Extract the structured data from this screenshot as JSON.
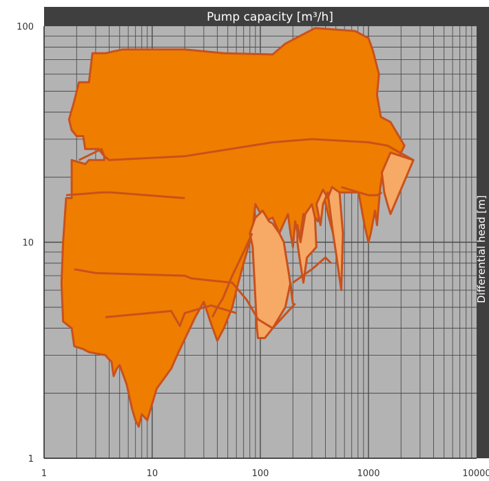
{
  "chart_data": {
    "type": "area",
    "title": "Pump capacity  [m³/h]",
    "ylabel": "Differential head  [m]",
    "x_scale": "log",
    "y_scale": "log",
    "xlim": [
      1,
      10000
    ],
    "ylim": [
      1,
      100
    ],
    "x_ticks": [
      {
        "value": 1,
        "label": "1"
      },
      {
        "value": 10,
        "label": "10"
      },
      {
        "value": 100,
        "label": "100"
      },
      {
        "value": 1000,
        "label": "1000"
      },
      {
        "value": 10000,
        "label": "10000"
      }
    ],
    "y_ticks": [
      {
        "value": 1,
        "label": "1"
      },
      {
        "value": 10,
        "label": "10"
      },
      {
        "value": 100,
        "label": "100"
      }
    ],
    "grid": true,
    "colors": {
      "plot_background": "#b3b3b3",
      "grid": "#4a4a4a",
      "area_main": "#ef7d00",
      "area_light": "#f7a966",
      "outline": "#c8511c",
      "header_band": "#3f3f3f"
    },
    "regions": [
      {
        "shade": "main",
        "points": [
          [
            1.7,
            37
          ],
          [
            1.9,
            45
          ],
          [
            2.1,
            55
          ],
          [
            2.6,
            55
          ],
          [
            2.8,
            75
          ],
          [
            3.7,
            75
          ],
          [
            5.3,
            78
          ],
          [
            20,
            78
          ],
          [
            46,
            75
          ],
          [
            130,
            74
          ],
          [
            170,
            83
          ],
          [
            320,
            98
          ],
          [
            750,
            95
          ],
          [
            1000,
            88
          ],
          [
            1100,
            77
          ],
          [
            1250,
            60
          ],
          [
            1200,
            48
          ],
          [
            1300,
            38
          ],
          [
            1600,
            36
          ],
          [
            2150,
            28
          ],
          [
            1850,
            24
          ],
          [
            1650,
            20
          ],
          [
            1500,
            17
          ],
          [
            1400,
            20
          ],
          [
            1500,
            17
          ],
          [
            1330,
            20
          ],
          [
            1280,
            17.5
          ],
          [
            1200,
            12
          ],
          [
            1150,
            14
          ],
          [
            1050,
            11
          ],
          [
            1000,
            10
          ],
          [
            920,
            12
          ],
          [
            870,
            14
          ],
          [
            810,
            17
          ],
          [
            500,
            17
          ],
          [
            470,
            11
          ],
          [
            430,
            13
          ],
          [
            390,
            16
          ],
          [
            340,
            12.5
          ],
          [
            290,
            14
          ],
          [
            270,
            12
          ],
          [
            250,
            13.5
          ],
          [
            230,
            10
          ],
          [
            210,
            12.5
          ],
          [
            200,
            9.5
          ],
          [
            190,
            11
          ],
          [
            180,
            13.5
          ],
          [
            150,
            11
          ],
          [
            130,
            13
          ],
          [
            110,
            12.5
          ],
          [
            90,
            15
          ],
          [
            84,
            11
          ],
          [
            75,
            9
          ],
          [
            70,
            8
          ],
          [
            60,
            6
          ],
          [
            55,
            5
          ],
          [
            46,
            4
          ],
          [
            40,
            3.5
          ],
          [
            35,
            4.2
          ],
          [
            30,
            5.3
          ],
          [
            25,
            4.5
          ],
          [
            17,
            3
          ],
          [
            15,
            2.6
          ],
          [
            11,
            2.1
          ],
          [
            9,
            1.5
          ],
          [
            8,
            1.6
          ],
          [
            7.5,
            1.4
          ],
          [
            7,
            1.5
          ],
          [
            6.5,
            1.7
          ],
          [
            5.8,
            2.2
          ],
          [
            5,
            2.7
          ],
          [
            4.7,
            2.6
          ],
          [
            4.4,
            2.4
          ],
          [
            4.2,
            2.8
          ],
          [
            3.9,
            2.9
          ],
          [
            3.7,
            3
          ],
          [
            2.6,
            3.1
          ],
          [
            2.3,
            3.2
          ],
          [
            1.9,
            3.3
          ],
          [
            1.8,
            4
          ],
          [
            1.5,
            4.3
          ],
          [
            1.45,
            6.5
          ],
          [
            1.5,
            10
          ],
          [
            1.6,
            16
          ],
          [
            1.8,
            16
          ],
          [
            1.8,
            24
          ],
          [
            2.4,
            23
          ],
          [
            2.6,
            24
          ],
          [
            3.6,
            24
          ],
          [
            3.6,
            25
          ],
          [
            3.2,
            27
          ],
          [
            2.4,
            27
          ],
          [
            2.3,
            31
          ],
          [
            2,
            31
          ],
          [
            1.8,
            33
          ]
        ]
      },
      {
        "shade": "light",
        "points": [
          [
            1330,
            21
          ],
          [
            1400,
            17
          ],
          [
            1500,
            15
          ],
          [
            1600,
            13.5
          ],
          [
            2600,
            24
          ],
          [
            1600,
            26
          ]
        ]
      },
      {
        "shade": "light",
        "points": [
          [
            120,
            12.5
          ],
          [
            130,
            12.2
          ],
          [
            150,
            11
          ],
          [
            165,
            10
          ],
          [
            185,
            7
          ],
          [
            200,
            5.2
          ],
          [
            190,
            6.5
          ],
          [
            170,
            5
          ],
          [
            130,
            4
          ],
          [
            110,
            3.6
          ],
          [
            95,
            3.6
          ],
          [
            93,
            4
          ],
          [
            90,
            5.5
          ],
          [
            85,
            9.5
          ],
          [
            80,
            11
          ],
          [
            90,
            13
          ],
          [
            105,
            14
          ],
          [
            115,
            13
          ]
        ]
      },
      {
        "shade": "light",
        "points": [
          [
            330,
            15
          ],
          [
            360,
            12
          ],
          [
            380,
            15
          ],
          [
            420,
            17
          ],
          [
            470,
            11
          ],
          [
            500,
            9
          ],
          [
            560,
            6
          ],
          [
            580,
            11
          ],
          [
            540,
            17
          ],
          [
            460,
            18
          ],
          [
            420,
            16
          ],
          [
            380,
            17.5
          ],
          [
            350,
            16
          ]
        ]
      },
      {
        "shade": "light",
        "points": [
          [
            220,
            12
          ],
          [
            235,
            10
          ],
          [
            260,
            13.5
          ],
          [
            300,
            15
          ],
          [
            320,
            13
          ],
          [
            330,
            9.5
          ],
          [
            300,
            9
          ],
          [
            270,
            8.5
          ],
          [
            250,
            6.5
          ],
          [
            230,
            8.5
          ],
          [
            220,
            10
          ]
        ]
      }
    ],
    "outlines": [
      [
        [
          2.1,
          24
        ],
        [
          3.4,
          27
        ],
        [
          3.6,
          25
        ],
        [
          4,
          24
        ],
        [
          20,
          25
        ],
        [
          130,
          29
        ],
        [
          300,
          30
        ],
        [
          1000,
          29
        ],
        [
          1500,
          28
        ],
        [
          2600,
          24
        ]
      ],
      [
        [
          1.9,
          7.5
        ],
        [
          3,
          7.2
        ],
        [
          20,
          7
        ],
        [
          23,
          6.8
        ],
        [
          55,
          6.5
        ],
        [
          75,
          5.4
        ],
        [
          95,
          4.4
        ],
        [
          130,
          4
        ],
        [
          210,
          5.2
        ]
      ],
      [
        [
          1.6,
          16.5
        ],
        [
          3.4,
          17
        ],
        [
          4.2,
          17
        ],
        [
          20,
          16
        ]
      ],
      [
        [
          3.7,
          4.5
        ],
        [
          15,
          4.8
        ],
        [
          18,
          4.1
        ],
        [
          20,
          4.7
        ],
        [
          35,
          5.1
        ],
        [
          60,
          4.7
        ]
      ],
      [
        [
          560,
          18
        ],
        [
          820,
          17
        ],
        [
          1000,
          16.5
        ],
        [
          1200,
          16.5
        ],
        [
          1330,
          17
        ]
      ],
      [
        [
          84,
          11
        ],
        [
          70,
          9
        ],
        [
          55,
          7
        ],
        [
          45,
          5.5
        ],
        [
          40,
          5
        ],
        [
          36,
          4.5
        ]
      ],
      [
        [
          200,
          6.5
        ],
        [
          300,
          7.5
        ],
        [
          400,
          8.5
        ],
        [
          450,
          8
        ]
      ]
    ]
  }
}
